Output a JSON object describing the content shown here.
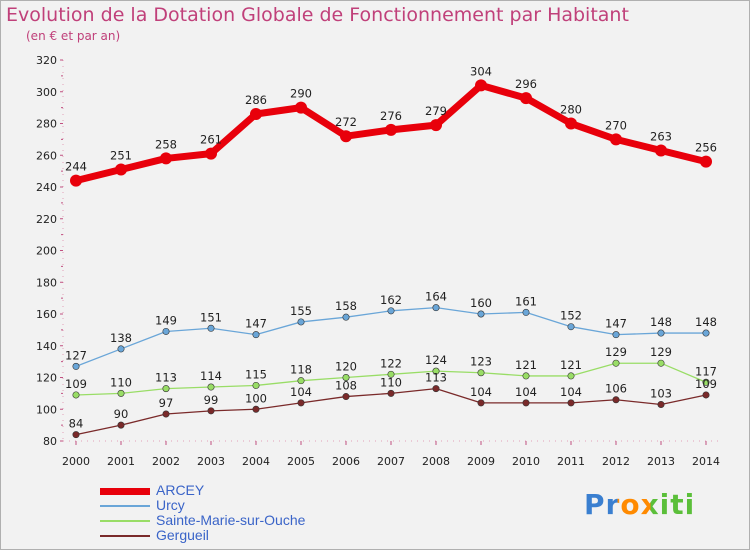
{
  "title": "Evolution de la Dotation Globale de Fonctionnement par Habitant",
  "subtitle": "(en € et par an)",
  "brand": {
    "text": "Proxiti"
  },
  "chart_data": {
    "type": "line",
    "x": [
      "2000",
      "2001",
      "2002",
      "2003",
      "2004",
      "2005",
      "2006",
      "2007",
      "2008",
      "2009",
      "2010",
      "2011",
      "2012",
      "2013",
      "2014"
    ],
    "ylim": [
      80,
      320
    ],
    "yticks": [
      80,
      100,
      120,
      140,
      160,
      180,
      200,
      220,
      240,
      260,
      280,
      300,
      320
    ],
    "grid": false,
    "legend_position": "bottom-left",
    "series": [
      {
        "name": "ARCEY",
        "color": "#e8000b",
        "values": [
          244,
          251,
          258,
          261,
          286,
          290,
          272,
          276,
          279,
          304,
          296,
          280,
          270,
          263,
          256
        ]
      },
      {
        "name": "Urcy",
        "color": "#6aa6d8",
        "values": [
          127,
          138,
          149,
          151,
          147,
          155,
          158,
          162,
          164,
          160,
          161,
          152,
          147,
          148,
          148
        ]
      },
      {
        "name": "Sainte-Marie-sur-Ouche",
        "color": "#99dd66",
        "values": [
          109,
          110,
          113,
          114,
          115,
          118,
          120,
          122,
          124,
          123,
          121,
          121,
          129,
          129,
          117
        ]
      },
      {
        "name": "Gergueil",
        "color": "#7a2a2a",
        "values": [
          84,
          90,
          97,
          99,
          100,
          104,
          108,
          110,
          113,
          104,
          104,
          104,
          106,
          103,
          109
        ]
      }
    ]
  }
}
